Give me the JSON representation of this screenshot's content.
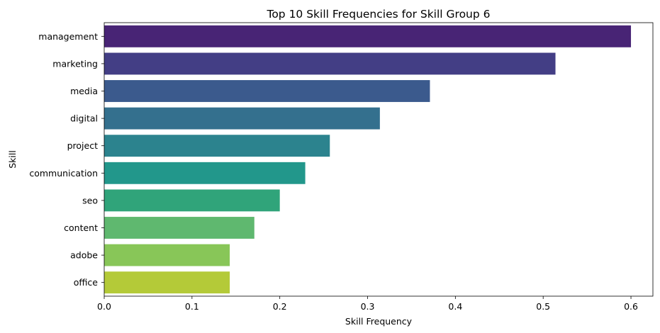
{
  "chart_data": {
    "type": "bar",
    "orientation": "horizontal",
    "title": "Top 10 Skill Frequencies for Skill Group 6",
    "xlabel": "Skill Frequency",
    "ylabel": "Skill",
    "categories": [
      "management",
      "marketing",
      "media",
      "digital",
      "project",
      "communication",
      "seo",
      "content",
      "adobe",
      "office"
    ],
    "values": [
      0.6,
      0.514,
      0.371,
      0.314,
      0.257,
      0.229,
      0.2,
      0.171,
      0.143,
      0.143
    ],
    "colors": [
      "#482475",
      "#433e85",
      "#3b5a8d",
      "#34708e",
      "#2c838e",
      "#22978b",
      "#30a47a",
      "#5fb86f",
      "#88c658",
      "#b4ca38"
    ],
    "xlim": [
      0,
      0.625
    ],
    "xticks": [
      "0.0",
      "0.1",
      "0.2",
      "0.3",
      "0.4",
      "0.5",
      "0.6"
    ],
    "grid": false,
    "legend": "none"
  }
}
